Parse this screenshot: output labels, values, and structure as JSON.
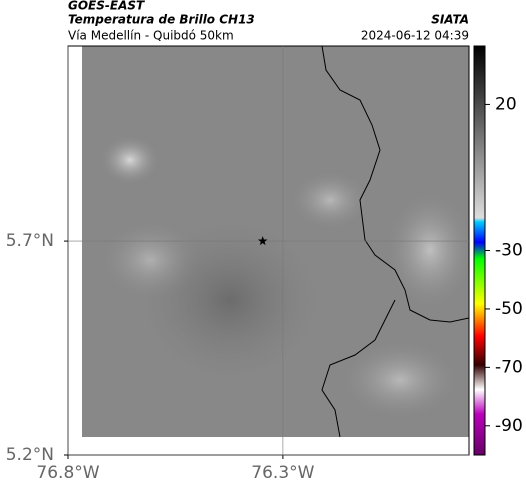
{
  "header": {
    "source": "GOES-EAST",
    "title": "Temperatura de Brillo CH13",
    "subtitle": "Vía Medellín - Quibdó 50km",
    "org": "SIATA",
    "datetime": "2024-06-12 04:39"
  },
  "chart_data": {
    "type": "map",
    "xlim": [
      -76.8,
      -75.867
    ],
    "ylim": [
      5.2,
      6.156
    ],
    "xticks": [
      {
        "value": -76.8,
        "label": "76.8°W"
      },
      {
        "value": -76.3,
        "label": "76.3°W"
      }
    ],
    "yticks": [
      {
        "value": 5.2,
        "label": "5.2°N"
      },
      {
        "value": 5.7,
        "label": "5.7°N"
      }
    ],
    "grid": true,
    "marker": {
      "lon": -76.347,
      "lat": 5.7
    },
    "clim": [
      -100,
      40
    ],
    "cticks": [
      20,
      -30,
      -50,
      -70,
      -90
    ]
  }
}
